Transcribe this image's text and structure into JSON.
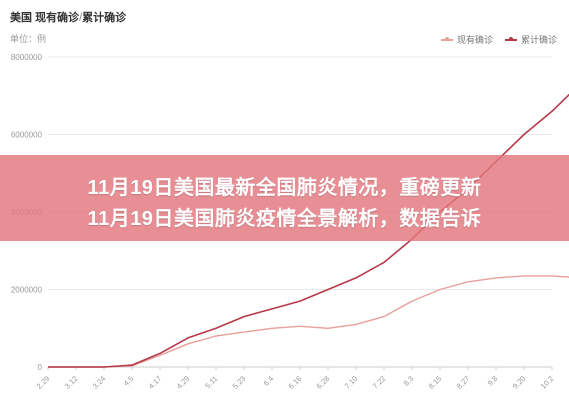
{
  "header": {
    "country": "美国",
    "metric_current": "现有确诊",
    "metric_cumulative": "累计确诊",
    "unit_label": "单位：例"
  },
  "banner": {
    "line1": "11月19日美国最新全国肺炎情况，重磅更新",
    "line2": "11月19日美国肺炎疫情全景解析，数据告诉"
  },
  "colors": {
    "current": "#e8a09c",
    "cumulative": "#b5394a",
    "grid": "#e9e9e9",
    "axis": "#cfcfcf",
    "banner": "#e2767e"
  },
  "chart_data": {
    "type": "line",
    "title": "",
    "xlabel": "",
    "ylabel": "",
    "ylim": [
      0,
      8000000
    ],
    "y_ticks": [
      "0",
      "2000000",
      "4000000",
      "6000000",
      "8000000"
    ],
    "x_ticks": [
      "2.29",
      "3.12",
      "3.24",
      "4.5",
      "4.17",
      "4.29",
      "5.11",
      "5.23",
      "6.4",
      "6.16",
      "6.28",
      "7.10",
      "7.22",
      "8.3",
      "8.15",
      "8.27",
      "9.8",
      "9.20",
      "10.2"
    ],
    "legend": {
      "position": "top-right"
    },
    "grid": true,
    "series": [
      {
        "name": "现有确诊",
        "points": [
          [
            0,
            0
          ],
          [
            2,
            0
          ],
          [
            3,
            30000
          ],
          [
            4,
            300000
          ],
          [
            5,
            600000
          ],
          [
            6,
            800000
          ],
          [
            7,
            900000
          ],
          [
            8,
            1000000
          ],
          [
            9,
            1050000
          ],
          [
            10,
            1000000
          ],
          [
            11,
            1100000
          ],
          [
            12,
            1300000
          ],
          [
            13,
            1700000
          ],
          [
            14,
            2000000
          ],
          [
            15,
            2200000
          ],
          [
            16,
            2300000
          ],
          [
            17,
            2350000
          ],
          [
            18,
            2350000
          ],
          [
            19,
            2300000
          ]
        ]
      },
      {
        "name": "累计确诊",
        "points": [
          [
            0,
            0
          ],
          [
            2,
            0
          ],
          [
            3,
            50000
          ],
          [
            4,
            350000
          ],
          [
            5,
            750000
          ],
          [
            6,
            1000000
          ],
          [
            7,
            1300000
          ],
          [
            8,
            1500000
          ],
          [
            9,
            1700000
          ],
          [
            10,
            2000000
          ],
          [
            11,
            2300000
          ],
          [
            12,
            2700000
          ],
          [
            13,
            3300000
          ],
          [
            14,
            4000000
          ],
          [
            15,
            4600000
          ],
          [
            16,
            5300000
          ],
          [
            17,
            6000000
          ],
          [
            18,
            6600000
          ],
          [
            19,
            7300000
          ]
        ]
      }
    ]
  }
}
